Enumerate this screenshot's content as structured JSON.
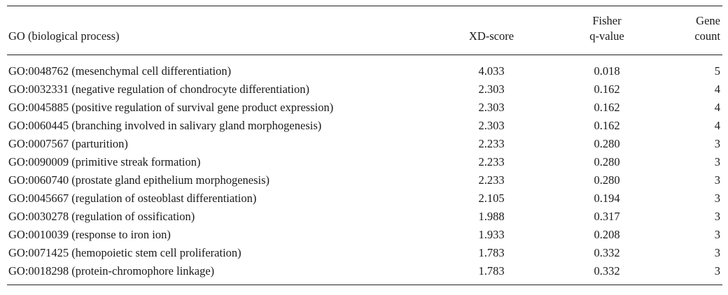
{
  "table": {
    "headers": {
      "go": "GO (biological process)",
      "xd": "XD-score",
      "fisher_line1": "Fisher",
      "fisher_line2": "q-value",
      "gene_line1": "Gene",
      "gene_line2": "count"
    },
    "rows": [
      {
        "go": "GO:0048762 (mesenchymal cell differentiation)",
        "xd": "4.033",
        "q": "0.018",
        "count": "5"
      },
      {
        "go": "GO:0032331 (negative regulation of chondrocyte differentiation)",
        "xd": "2.303",
        "q": "0.162",
        "count": "4"
      },
      {
        "go": "GO:0045885 (positive regulation of survival gene product expression)",
        "xd": "2.303",
        "q": "0.162",
        "count": "4"
      },
      {
        "go": "GO:0060445 (branching involved in salivary gland morphogenesis)",
        "xd": "2.303",
        "q": "0.162",
        "count": "4"
      },
      {
        "go": "GO:0007567 (parturition)",
        "xd": "2.233",
        "q": "0.280",
        "count": "3"
      },
      {
        "go": "GO:0090009 (primitive streak formation)",
        "xd": "2.233",
        "q": "0.280",
        "count": "3"
      },
      {
        "go": "GO:0060740 (prostate gland epithelium morphogenesis)",
        "xd": "2.233",
        "q": "0.280",
        "count": "3"
      },
      {
        "go": "GO:0045667 (regulation of osteoblast differentiation)",
        "xd": "2.105",
        "q": "0.194",
        "count": "3"
      },
      {
        "go": "GO:0030278 (regulation of ossification)",
        "xd": "1.988",
        "q": "0.317",
        "count": "3"
      },
      {
        "go": "GO:0010039 (response to iron ion)",
        "xd": "1.933",
        "q": "0.208",
        "count": "3"
      },
      {
        "go": "GO:0071425 (hemopoietic stem cell proliferation)",
        "xd": "1.783",
        "q": "0.332",
        "count": "3"
      },
      {
        "go": "GO:0018298 (protein-chromophore linkage)",
        "xd": "1.783",
        "q": "0.332",
        "count": "3"
      }
    ]
  }
}
